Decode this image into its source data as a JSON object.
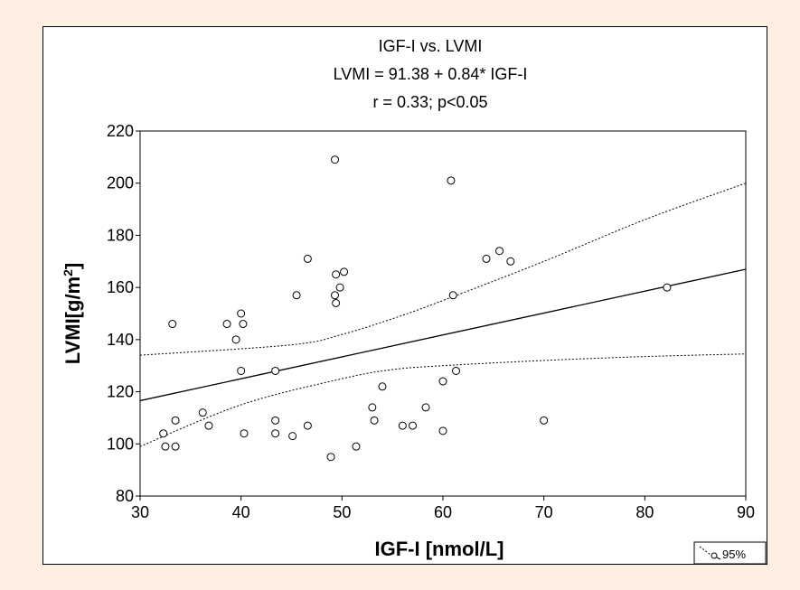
{
  "chart_data": {
    "type": "scatter",
    "title": "IGF-I vs. LVMI",
    "subtitle_lines": [
      "LVMI = 91.38 + 0.84* IGF-I",
      "r = 0.33; p<0.05"
    ],
    "xlabel": "IGF-I [nmol/L]",
    "ylabel": "LVMI[g/m",
    "ylabel_sup": "2",
    "ylabel_end": "]",
    "xlim": [
      30,
      90
    ],
    "ylim": [
      80,
      220
    ],
    "x_ticks": [
      30,
      40,
      50,
      60,
      70,
      80,
      90
    ],
    "y_ticks": [
      80,
      100,
      120,
      140,
      160,
      180,
      200,
      220
    ],
    "grid": false,
    "legend": "95%",
    "legend_position": "bottom-right",
    "regression": {
      "intercept": 91.38,
      "slope": 0.84
    },
    "confidence_band": {
      "upper": [
        [
          30,
          134
        ],
        [
          45,
          138
        ],
        [
          50,
          142
        ],
        [
          55,
          148
        ],
        [
          60,
          155
        ],
        [
          70,
          170
        ],
        [
          80,
          186
        ],
        [
          90,
          200
        ]
      ],
      "lower": [
        [
          30,
          99
        ],
        [
          40,
          115
        ],
        [
          50,
          125
        ],
        [
          55,
          128.5
        ],
        [
          60,
          130
        ],
        [
          70,
          132
        ],
        [
          80,
          133.5
        ],
        [
          90,
          134.5
        ]
      ]
    },
    "points": [
      {
        "x": 32.3,
        "y": 104
      },
      {
        "x": 32.5,
        "y": 99
      },
      {
        "x": 33.2,
        "y": 146
      },
      {
        "x": 33.5,
        "y": 109
      },
      {
        "x": 33.5,
        "y": 99
      },
      {
        "x": 36.2,
        "y": 112
      },
      {
        "x": 36.8,
        "y": 107
      },
      {
        "x": 38.6,
        "y": 146
      },
      {
        "x": 39.5,
        "y": 140
      },
      {
        "x": 40.0,
        "y": 150
      },
      {
        "x": 40.2,
        "y": 146
      },
      {
        "x": 40.0,
        "y": 128
      },
      {
        "x": 40.3,
        "y": 104
      },
      {
        "x": 43.4,
        "y": 128
      },
      {
        "x": 43.4,
        "y": 109
      },
      {
        "x": 43.4,
        "y": 104
      },
      {
        "x": 45.1,
        "y": 103
      },
      {
        "x": 45.5,
        "y": 157
      },
      {
        "x": 46.6,
        "y": 171
      },
      {
        "x": 46.6,
        "y": 107
      },
      {
        "x": 48.9,
        "y": 95
      },
      {
        "x": 49.3,
        "y": 209
      },
      {
        "x": 49.3,
        "y": 157
      },
      {
        "x": 49.4,
        "y": 154
      },
      {
        "x": 49.4,
        "y": 165
      },
      {
        "x": 49.8,
        "y": 160
      },
      {
        "x": 50.2,
        "y": 166
      },
      {
        "x": 51.4,
        "y": 99
      },
      {
        "x": 53.0,
        "y": 114
      },
      {
        "x": 53.2,
        "y": 109
      },
      {
        "x": 54.0,
        "y": 122
      },
      {
        "x": 56.0,
        "y": 107
      },
      {
        "x": 57.0,
        "y": 107
      },
      {
        "x": 58.3,
        "y": 114
      },
      {
        "x": 60.0,
        "y": 124
      },
      {
        "x": 60.0,
        "y": 105
      },
      {
        "x": 60.8,
        "y": 201
      },
      {
        "x": 61.0,
        "y": 157
      },
      {
        "x": 61.3,
        "y": 128
      },
      {
        "x": 64.3,
        "y": 171
      },
      {
        "x": 65.6,
        "y": 174
      },
      {
        "x": 66.7,
        "y": 170
      },
      {
        "x": 70.0,
        "y": 109
      },
      {
        "x": 82.2,
        "y": 160
      }
    ]
  }
}
